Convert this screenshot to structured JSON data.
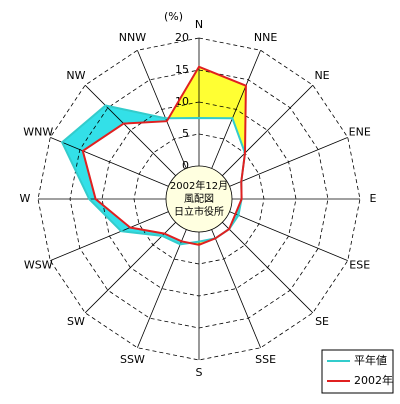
{
  "chart_data": {
    "type": "radar",
    "unit_label": "(%)",
    "center_text": [
      "2002年12月",
      "風配図",
      "日立市役所"
    ],
    "categories": [
      "N",
      "NNE",
      "NE",
      "ENE",
      "E",
      "ESE",
      "SE",
      "SSE",
      "S",
      "SSW",
      "SW",
      "WSW",
      "W",
      "WNW",
      "NW",
      "NNW"
    ],
    "series": [
      {
        "name": "平年値",
        "color": "#33cccc",
        "fill": "#33e0e8",
        "values": [
          7.5,
          8.5,
          5,
          2,
          1.5,
          1.5,
          1.5,
          1.5,
          1.5,
          2.5,
          3,
          8,
          12,
          18,
          15.5,
          8.5
        ]
      },
      {
        "name": "2002年",
        "color": "#e02020",
        "fill": "#ffff33",
        "values": [
          15.5,
          14,
          5,
          2,
          1.5,
          1,
          1.5,
          1.5,
          2,
          2,
          2.5,
          6.5,
          11,
          14.5,
          11.5,
          8
        ]
      }
    ],
    "ylim": [
      0,
      20
    ],
    "yticks": [
      0,
      5,
      10,
      15,
      20
    ],
    "grid": true
  }
}
